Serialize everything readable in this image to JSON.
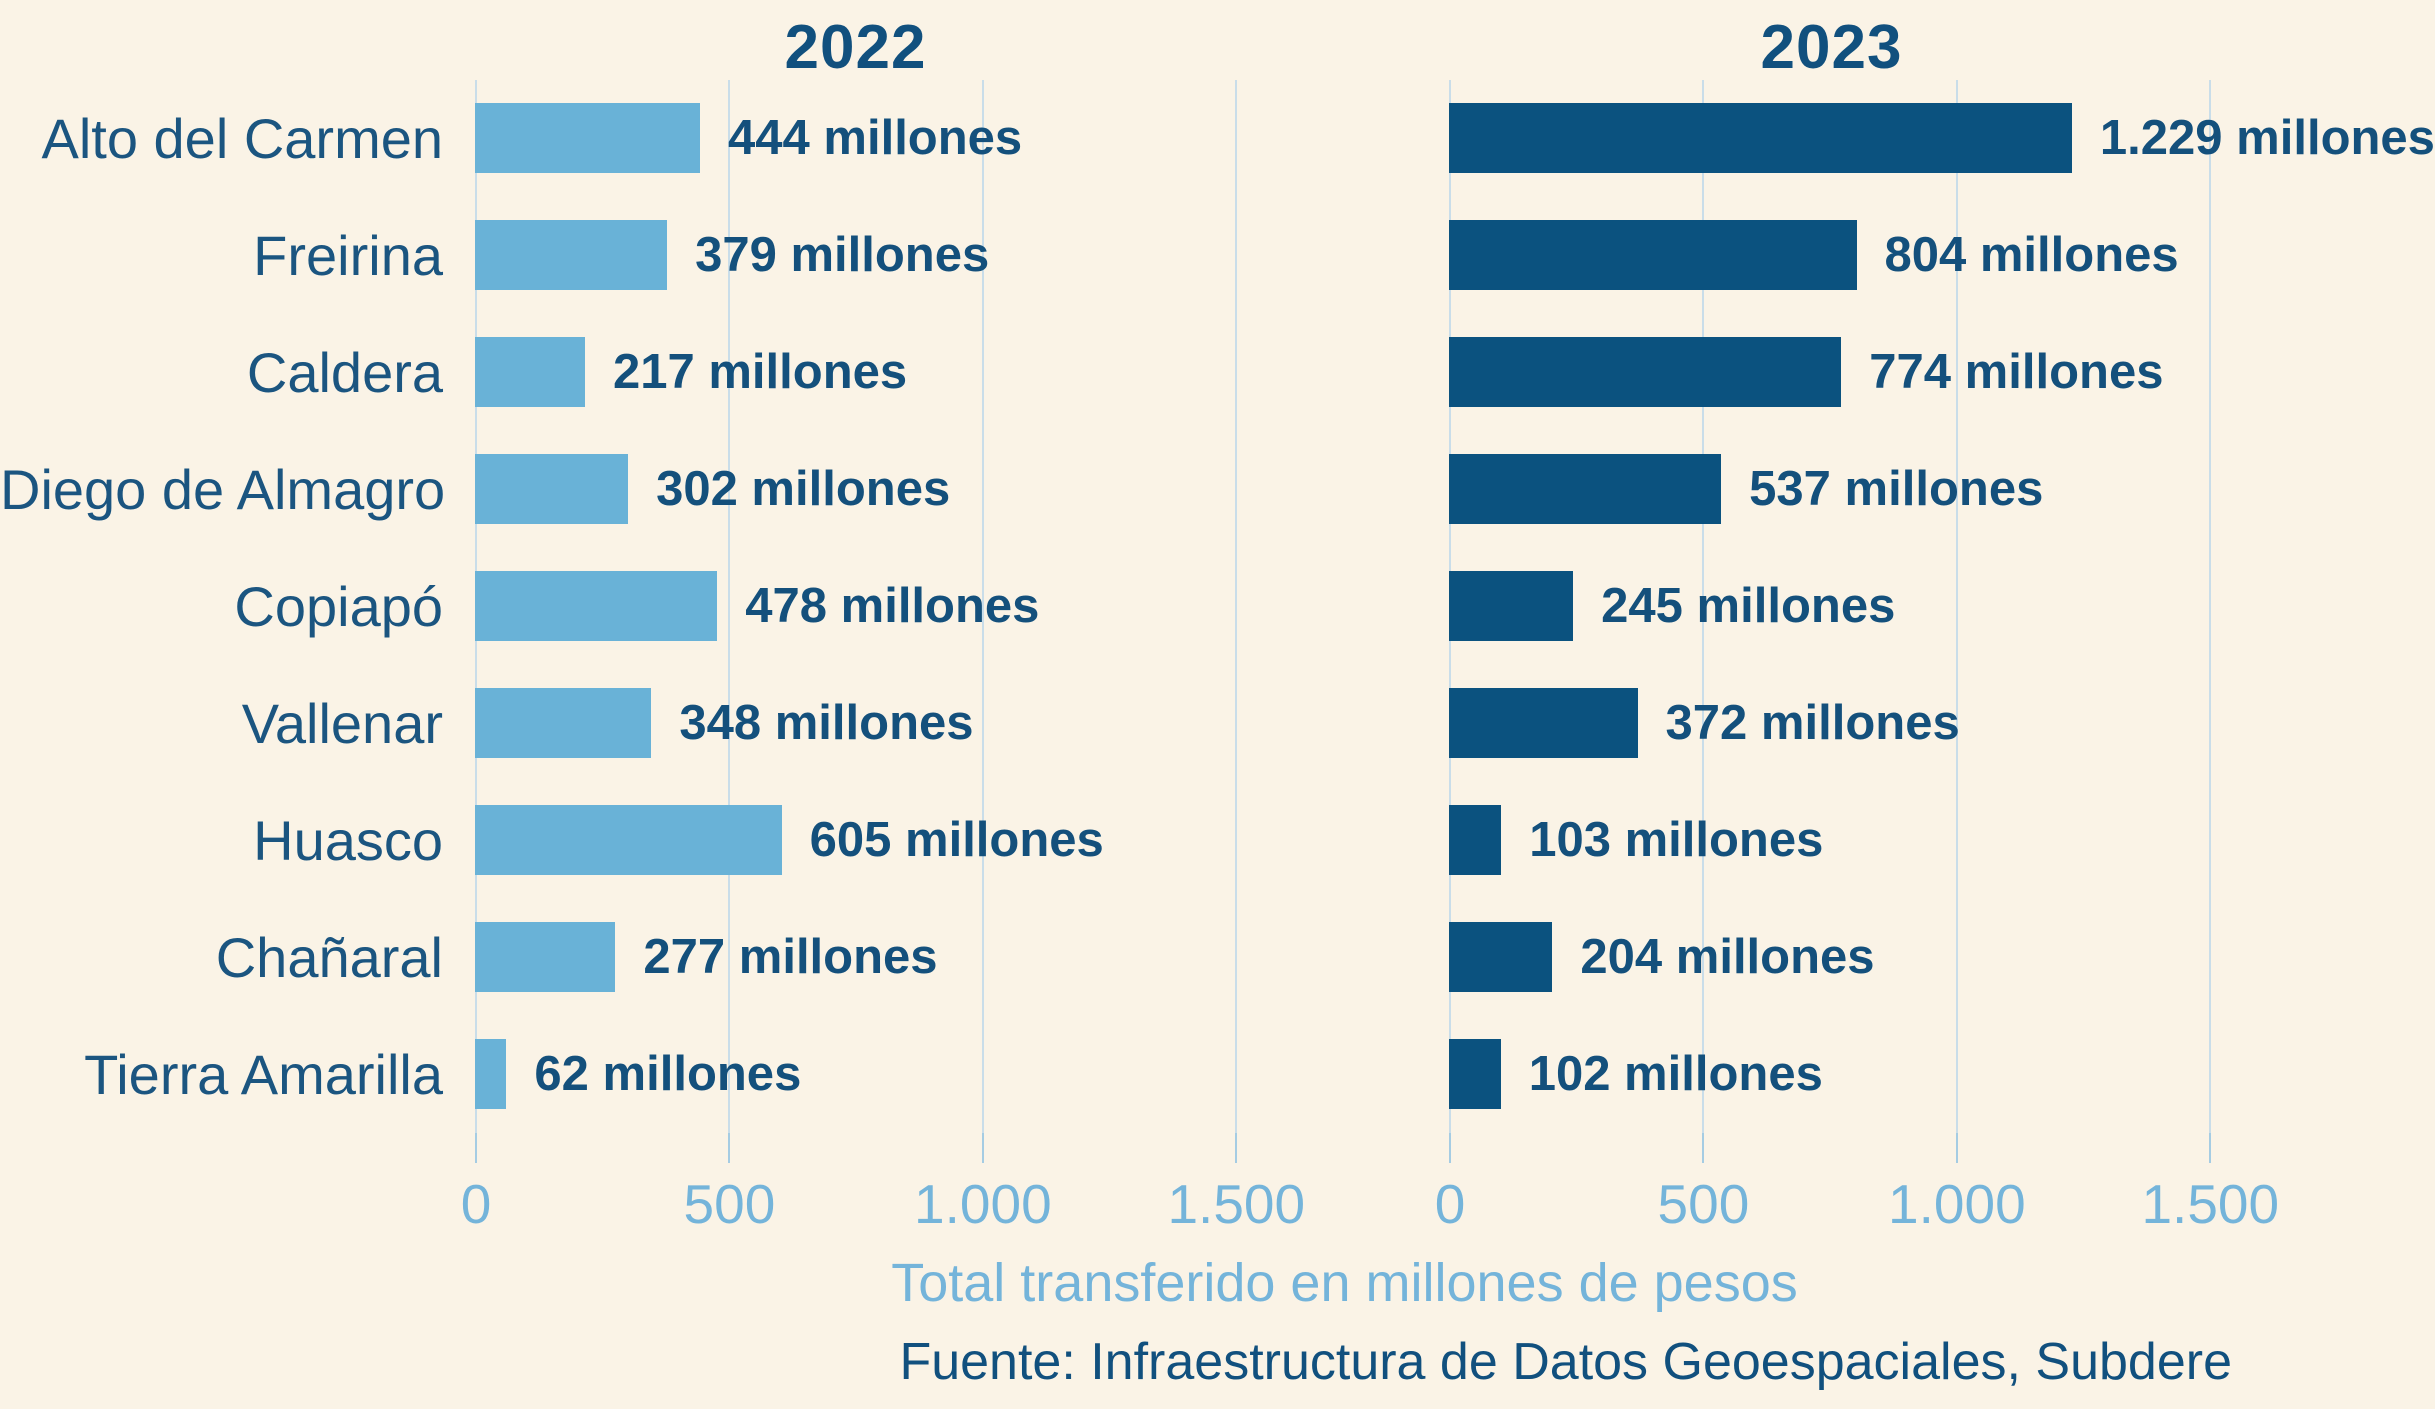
{
  "colors": {
    "background": "#faf3e6",
    "bar_2022": "#69b2d7",
    "bar_2023": "#0b527f",
    "text_dark_blue": "#14507c",
    "text_light_blue": "#74b4da",
    "gridline": "#c9dde9"
  },
  "footer": {
    "xlabel": "Total transferido en millones de pesos",
    "source": "Fuente: Infraestructura de Datos Geoespaciales, Subdere"
  },
  "chart_data": {
    "type": "bar",
    "orientation": "horizontal",
    "categories": [
      "Alto del Carmen",
      "Freirina",
      "Caldera",
      "Diego de Almagro",
      "Copiapó",
      "Vallenar",
      "Huasco",
      "Chañaral",
      "Tierra Amarilla"
    ],
    "series": [
      {
        "name": "2022",
        "values": [
          444,
          379,
          217,
          302,
          478,
          348,
          605,
          277,
          62
        ],
        "value_labels": [
          "444 millones",
          "379 millones",
          "217 millones",
          "302 millones",
          "478 millones",
          "348 millones",
          "605 millones",
          "277 millones",
          "62 millones"
        ]
      },
      {
        "name": "2023",
        "values": [
          1229,
          804,
          774,
          537,
          245,
          372,
          103,
          204,
          102
        ],
        "value_labels": [
          "1.229 millones",
          "804 millones",
          "774 millones",
          "537 millones",
          "245 millones",
          "372 millones",
          "103 millones",
          "204 millones",
          "102 millones"
        ]
      }
    ],
    "xlabel": "Total transferido en millones de pesos",
    "source": "Fuente: Infraestructura de Datos Geoespaciales, Subdere",
    "xlim": [
      0,
      1750
    ],
    "xticks": [
      0,
      500,
      1000,
      1500
    ],
    "xtick_labels": [
      "0",
      "500",
      "1.000",
      "1.500"
    ],
    "grid": "vertical",
    "legend": "none"
  }
}
